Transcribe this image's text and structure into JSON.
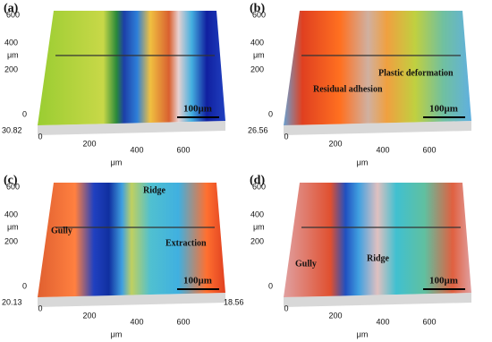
{
  "panels": [
    {
      "label": "(a)",
      "y_ticks": [
        "600",
        "400",
        "200",
        "0"
      ],
      "y_unit": "μm",
      "z_labels": [
        "30.82"
      ],
      "x_ticks": [
        "0",
        "200",
        "400",
        "600"
      ],
      "x_unit": "μm",
      "scale_bar": "100μm",
      "annotations": []
    },
    {
      "label": "(b)",
      "y_ticks": [
        "600",
        "400",
        "200",
        "0"
      ],
      "y_unit": "μm",
      "z_labels": [
        "26.56"
      ],
      "x_ticks": [
        "0",
        "200",
        "400",
        "600"
      ],
      "x_unit": "μm",
      "scale_bar": "100μm",
      "annotations": [
        "Residual adhesion",
        "Plastic deformation"
      ]
    },
    {
      "label": "(c)",
      "y_ticks": [
        "600",
        "400",
        "200",
        "0"
      ],
      "y_unit": "μm",
      "z_labels": [
        "20.13",
        "18.56"
      ],
      "x_ticks": [
        "0",
        "200",
        "400",
        "600"
      ],
      "x_unit": "μm",
      "scale_bar": "100μm",
      "annotations": [
        "Ridge",
        "Gully",
        "Extraction"
      ]
    },
    {
      "label": "(d)",
      "y_ticks": [
        "600",
        "400",
        "200",
        "0"
      ],
      "y_unit": "μm",
      "z_labels": [],
      "x_ticks": [
        "0",
        "200",
        "400",
        "600"
      ],
      "x_unit": "μm",
      "scale_bar": "100μm",
      "annotations": [
        "Gully",
        "Ridge"
      ]
    }
  ]
}
